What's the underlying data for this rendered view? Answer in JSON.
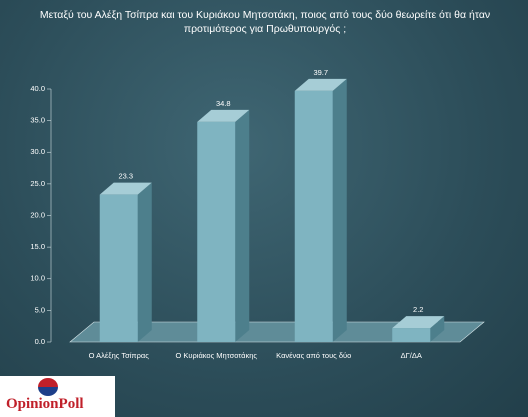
{
  "chart_data": {
    "type": "bar3d",
    "title": "Μεταξύ του Αλέξη Τσίπρα και του Κυριάκου Μητσοτάκη, ποιος από τους δύο θεωρείτε ότι θα ήταν προτιμότερος για Πρωθυπουργός ;",
    "categories": [
      "Ο Αλέξης Τσίπρας",
      "Ο Κυριάκος Μητσοτάκης",
      "Κανένας από τους δύο",
      "ΔΓ/ΔΑ"
    ],
    "values": [
      23.3,
      34.8,
      39.7,
      2.2
    ],
    "color": "#7fb4c1",
    "ylim": [
      0,
      40
    ],
    "yticks": [
      {
        "value": 0,
        "label": "0.0"
      },
      {
        "value": 5,
        "label": "5.0"
      },
      {
        "value": 10,
        "label": "10.0"
      },
      {
        "value": 15,
        "label": "15.0"
      },
      {
        "value": 20,
        "label": "20.0"
      },
      {
        "value": 25,
        "label": "25.0"
      },
      {
        "value": 30,
        "label": "30.0"
      },
      {
        "value": 35,
        "label": "35.0"
      },
      {
        "value": 40,
        "label": "40.0"
      }
    ],
    "logo": "OpinionPoll"
  }
}
